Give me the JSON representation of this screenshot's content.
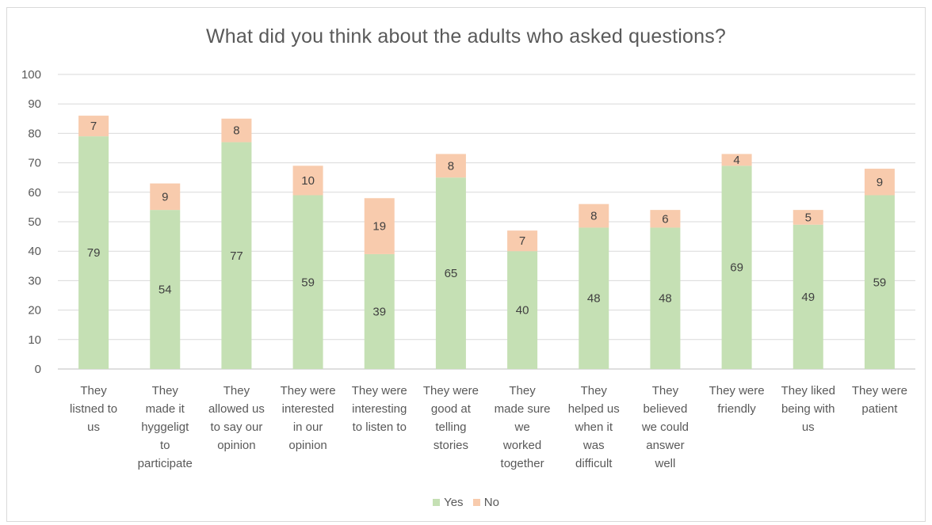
{
  "chart_data": {
    "type": "bar",
    "stacked": true,
    "title": "What did you think about the adults who asked questions?",
    "xlabel": "",
    "ylabel": "",
    "ylim": [
      0,
      100
    ],
    "yticks": [
      0,
      10,
      20,
      30,
      40,
      50,
      60,
      70,
      80,
      90,
      100
    ],
    "grid": true,
    "legend_position": "bottom",
    "categories": [
      [
        "They",
        "listned to",
        "us"
      ],
      [
        "They",
        "made it",
        "hyggeligt",
        "to",
        "participate"
      ],
      [
        "They",
        "allowed us",
        "to say our",
        "opinion"
      ],
      [
        "They were",
        "interested",
        "in our",
        "opinion"
      ],
      [
        "They were",
        "interesting",
        "to listen to"
      ],
      [
        "They were",
        "good at",
        "telling",
        "stories"
      ],
      [
        "They",
        "made sure",
        "we",
        "worked",
        "together"
      ],
      [
        "They",
        "helped us",
        "when it",
        "was",
        "difficult"
      ],
      [
        "They",
        "believed",
        "we could",
        "answer",
        "well"
      ],
      [
        "They were",
        "friendly"
      ],
      [
        "They liked",
        "being with",
        "us"
      ],
      [
        "They were",
        "patient"
      ]
    ],
    "series": [
      {
        "name": "Yes",
        "color": "#c5e0b4",
        "values": [
          79,
          54,
          77,
          59,
          39,
          65,
          40,
          48,
          48,
          69,
          49,
          59
        ]
      },
      {
        "name": "No",
        "color": "#f8cbad",
        "values": [
          7,
          9,
          8,
          10,
          19,
          8,
          7,
          8,
          6,
          4,
          5,
          9
        ]
      }
    ]
  }
}
